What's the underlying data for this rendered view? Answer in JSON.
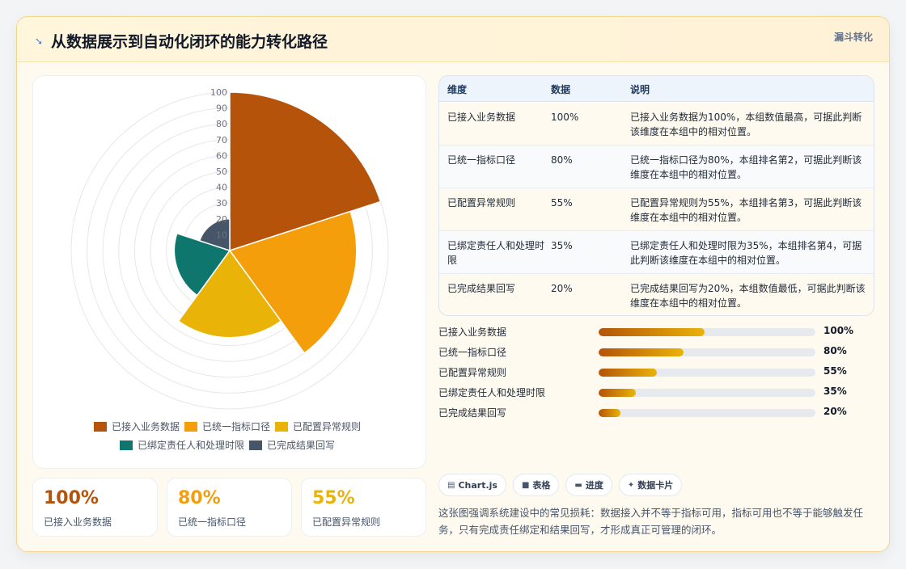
{
  "header": {
    "icon": "bolt-icon",
    "title": "从数据展示到自动化闭环的能力转化路径",
    "tag": "漏斗转化"
  },
  "chart_data": {
    "type": "polarArea",
    "categories": [
      "已接入业务数据",
      "已统一指标口径",
      "已配置异常规则",
      "已绑定责任人和处理时限",
      "已完成结果回写"
    ],
    "values": [
      100,
      80,
      55,
      35,
      20
    ],
    "colors": [
      "#b45309",
      "#f59e0b",
      "#eab308",
      "#0f766e",
      "#475569"
    ],
    "r_range": [
      0,
      100
    ],
    "r_ticks": [
      "10",
      "20",
      "30",
      "40",
      "50",
      "60",
      "70",
      "80",
      "90",
      "100"
    ],
    "legend_position": "bottom",
    "grid": true
  },
  "kpis": [
    {
      "value": "100%",
      "label": "已接入业务数据",
      "color": "#b45309"
    },
    {
      "value": "80%",
      "label": "已统一指标口径",
      "color": "#f59e0b"
    },
    {
      "value": "55%",
      "label": "已配置异常规则",
      "color": "#eab308"
    }
  ],
  "table": {
    "headers": [
      "维度",
      "数据",
      "说明"
    ],
    "rows": [
      [
        "已接入业务数据",
        "100%",
        "已接入业务数据为100%，本组数值最高，可据此判断该维度在本组中的相对位置。"
      ],
      [
        "已统一指标口径",
        "80%",
        "已统一指标口径为80%，本组排名第2，可据此判断该维度在本组中的相对位置。"
      ],
      [
        "已配置异常规则",
        "55%",
        "已配置异常规则为55%，本组排名第3，可据此判断该维度在本组中的相对位置。"
      ],
      [
        "已绑定责任人和处理时限",
        "35%",
        "已绑定责任人和处理时限为35%，本组排名第4，可据此判断该维度在本组中的相对位置。"
      ],
      [
        "已完成结果回写",
        "20%",
        "已完成结果回写为20%，本组数值最低，可据此判断该维度在本组中的相对位置。"
      ]
    ]
  },
  "progress": [
    {
      "label": "已接入业务数据",
      "value": "100%",
      "fraction": 0.49
    },
    {
      "label": "已统一指标口径",
      "value": "80%",
      "fraction": 0.39
    },
    {
      "label": "已配置异常规则",
      "value": "55%",
      "fraction": 0.27
    },
    {
      "label": "已绑定责任人和处理时限",
      "value": "35%",
      "fraction": 0.17
    },
    {
      "label": "已完成结果回写",
      "value": "20%",
      "fraction": 0.1
    }
  ],
  "tags": [
    {
      "icon": "chart-icon",
      "glyph": "▤",
      "label": "Chart.js"
    },
    {
      "icon": "table-icon",
      "glyph": "■",
      "label": "表格"
    },
    {
      "icon": "progress-icon",
      "glyph": "▬",
      "label": "进度"
    },
    {
      "icon": "sparkle-icon",
      "glyph": "✦",
      "label": "数据卡片"
    }
  ],
  "summary": "这张图强调系统建设中的常见损耗：数据接入并不等于指标可用，指标可用也不等于能够触发任务，只有完成责任绑定和结果回写，才形成真正可管理的闭环。"
}
